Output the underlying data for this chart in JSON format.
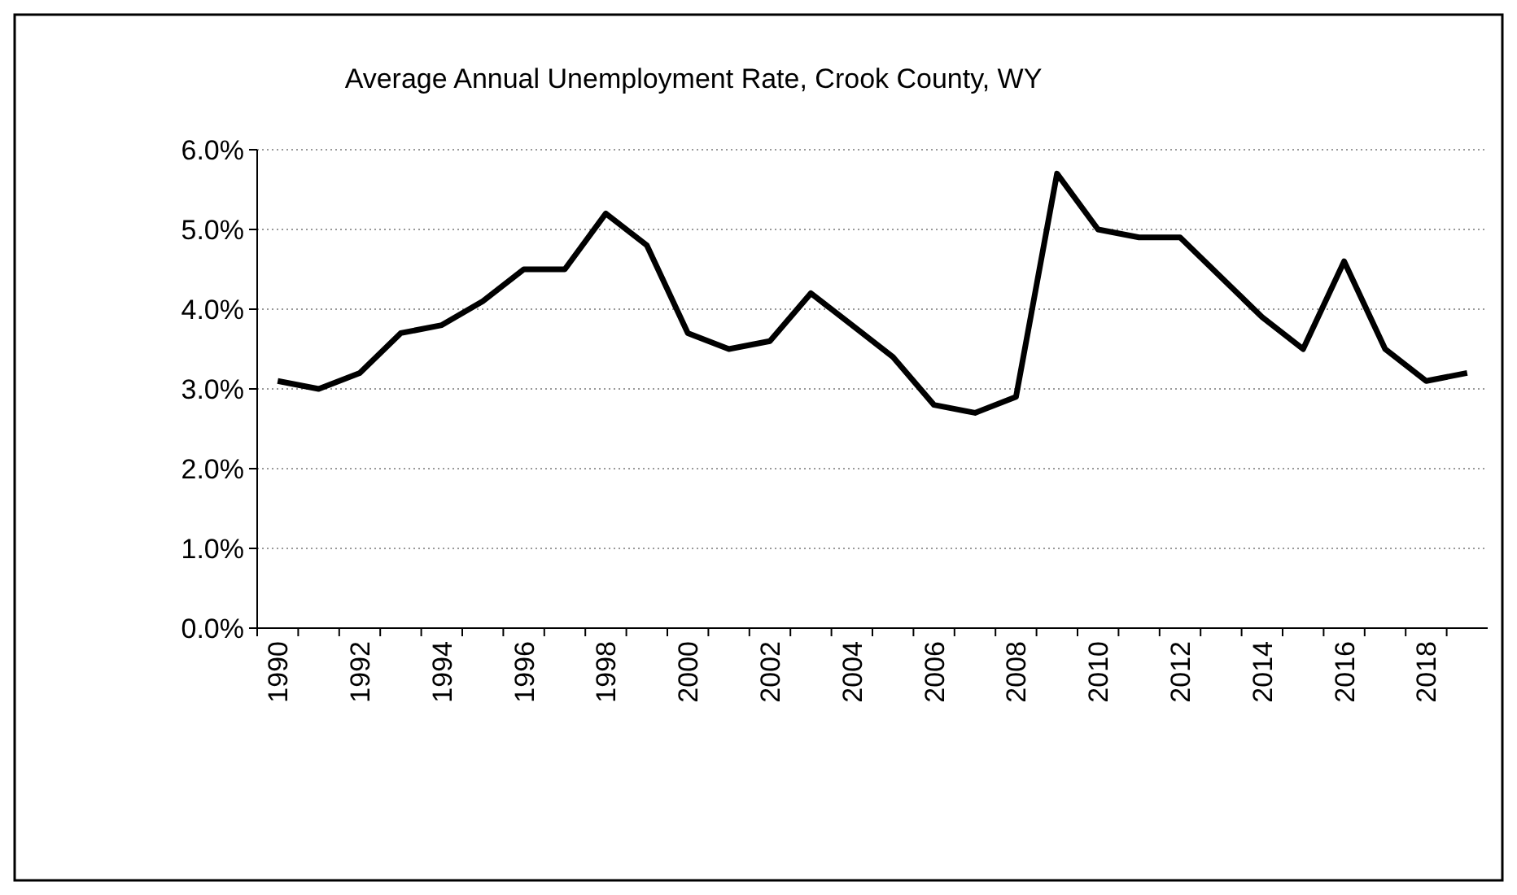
{
  "chart_data": {
    "type": "line",
    "title": "Average Annual Unemployment Rate, Crook County, WY",
    "categories": [
      "1990",
      null,
      "1992",
      null,
      "1994",
      null,
      "1996",
      null,
      "1998",
      null,
      "2000",
      null,
      "2002",
      null,
      "2004",
      null,
      "2006",
      null,
      "2008",
      null,
      "2010",
      null,
      "2012",
      null,
      "2014",
      null,
      "2016",
      null,
      "2018",
      null
    ],
    "series": [
      {
        "color": "#000000",
        "values": [
          3.1,
          3.0,
          3.2,
          3.7,
          3.8,
          4.1,
          4.5,
          4.5,
          5.2,
          4.8,
          3.7,
          3.5,
          3.6,
          4.2,
          3.8,
          3.4,
          2.8,
          2.7,
          2.9,
          5.7,
          5.0,
          4.9,
          4.9,
          4.4,
          3.9,
          3.5,
          4.6,
          3.5,
          3.1,
          3.2
        ]
      }
    ],
    "ylim": [
      0,
      6
    ],
    "yticks": [
      {
        "value": 0,
        "label": "0.0%"
      },
      {
        "value": 1,
        "label": "1.0%"
      },
      {
        "value": 2,
        "label": "2.0%"
      },
      {
        "value": 3,
        "label": "3.0%"
      },
      {
        "value": 4,
        "label": "4.0%"
      },
      {
        "value": 5,
        "label": "5.0%"
      },
      {
        "value": 6,
        "label": "6.0%"
      }
    ],
    "grid": "y",
    "marker": "none",
    "line_style": "solid"
  }
}
